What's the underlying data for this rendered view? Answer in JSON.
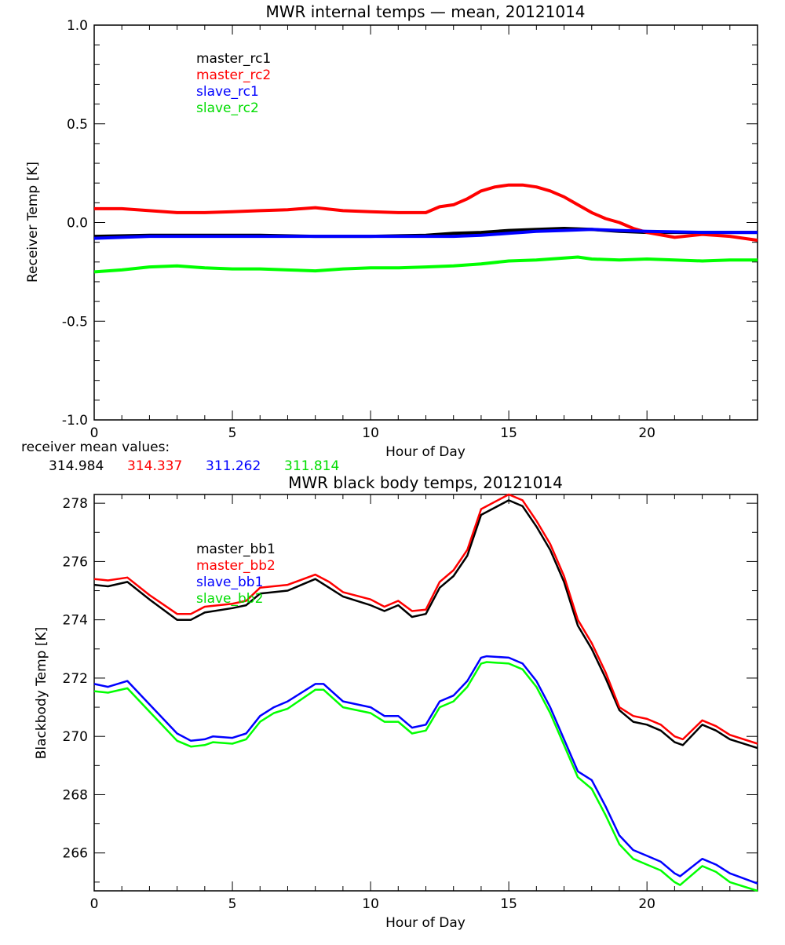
{
  "chart_data": [
    {
      "type": "line",
      "title": "MWR internal temps — mean, 20121014",
      "xlabel": "Hour of Day",
      "ylabel": "Receiver Temp [K]",
      "xlim": [
        0,
        24
      ],
      "ylim": [
        -1.0,
        1.0
      ],
      "xticks": [
        "0",
        "5",
        "10",
        "15",
        "20"
      ],
      "xtick_values": [
        0,
        5,
        10,
        15,
        20
      ],
      "yticks": [
        "-1.0",
        "-0.5",
        "0.0",
        "0.5",
        "1.0"
      ],
      "ytick_values": [
        -1.0,
        -0.5,
        0,
        0.5,
        1.0
      ],
      "legend_placement": "top-left",
      "series": [
        {
          "name": "master_rc1",
          "color": "#000000",
          "x": [
            0,
            2,
            4,
            6,
            8,
            10,
            12,
            13,
            14,
            15,
            16,
            17,
            18,
            19,
            20,
            22,
            24
          ],
          "y": [
            -0.07,
            -0.065,
            -0.065,
            -0.065,
            -0.07,
            -0.07,
            -0.065,
            -0.055,
            -0.05,
            -0.04,
            -0.035,
            -0.03,
            -0.035,
            -0.045,
            -0.05,
            -0.05,
            -0.05
          ]
        },
        {
          "name": "master_rc2",
          "color": "#ff0000",
          "x": [
            0,
            1,
            2,
            3,
            4,
            5,
            6,
            7,
            8,
            9,
            10,
            11,
            12,
            12.5,
            13,
            13.5,
            14,
            14.5,
            15,
            15.5,
            16,
            16.5,
            17,
            17.5,
            18,
            18.5,
            19,
            19.5,
            20,
            21,
            22,
            23,
            24
          ],
          "y": [
            0.07,
            0.07,
            0.06,
            0.05,
            0.05,
            0.055,
            0.06,
            0.065,
            0.075,
            0.06,
            0.055,
            0.05,
            0.05,
            0.08,
            0.09,
            0.12,
            0.16,
            0.18,
            0.19,
            0.19,
            0.18,
            0.16,
            0.13,
            0.09,
            0.05,
            0.02,
            0.0,
            -0.03,
            -0.05,
            -0.075,
            -0.06,
            -0.07,
            -0.09
          ]
        },
        {
          "name": "slave_rc1",
          "color": "#0000ff",
          "x": [
            0,
            2,
            4,
            6,
            8,
            10,
            12,
            13,
            14,
            15,
            16,
            17,
            18,
            19,
            20,
            22,
            24
          ],
          "y": [
            -0.08,
            -0.07,
            -0.07,
            -0.07,
            -0.07,
            -0.07,
            -0.07,
            -0.07,
            -0.065,
            -0.055,
            -0.045,
            -0.04,
            -0.035,
            -0.04,
            -0.045,
            -0.05,
            -0.05
          ]
        },
        {
          "name": "slave_rc2",
          "color": "#00ff00",
          "x": [
            0,
            1,
            2,
            3,
            4,
            5,
            6,
            7,
            8,
            9,
            10,
            11,
            12,
            13,
            14,
            15,
            16,
            17,
            17.5,
            18,
            19,
            20,
            21,
            22,
            23,
            24
          ],
          "y": [
            -0.25,
            -0.24,
            -0.225,
            -0.22,
            -0.23,
            -0.235,
            -0.235,
            -0.24,
            -0.245,
            -0.235,
            -0.23,
            -0.23,
            -0.225,
            -0.22,
            -0.21,
            -0.195,
            -0.19,
            -0.18,
            -0.175,
            -0.185,
            -0.19,
            -0.185,
            -0.19,
            -0.195,
            -0.19,
            -0.19
          ]
        }
      ],
      "annotation": {
        "label": "receiver mean values:",
        "values": [
          "314.984",
          "314.337",
          "311.262",
          "311.814"
        ]
      }
    },
    {
      "type": "line",
      "title": "MWR black body temps, 20121014",
      "xlabel": "Hour of Day",
      "ylabel": "Blackbody Temp [K]",
      "xlim": [
        0,
        24
      ],
      "ylim": [
        264.7,
        278.3
      ],
      "xticks": [
        "0",
        "5",
        "10",
        "15",
        "20"
      ],
      "xtick_values": [
        0,
        5,
        10,
        15,
        20
      ],
      "yticks": [
        "266",
        "268",
        "270",
        "272",
        "274",
        "276",
        "278"
      ],
      "ytick_values": [
        266,
        268,
        270,
        272,
        274,
        276,
        278
      ],
      "legend_placement": "top-left",
      "series": [
        {
          "name": "master_bb1",
          "color": "#000000",
          "x": [
            0,
            0.5,
            1.2,
            2,
            3,
            3.5,
            4,
            5,
            5.5,
            6,
            7,
            8,
            8.5,
            9,
            10,
            10.5,
            11,
            11.5,
            12,
            12.5,
            13,
            13.5,
            14,
            15,
            15.5,
            16,
            16.5,
            17,
            17.5,
            18,
            18.5,
            19,
            19.5,
            20,
            20.5,
            21,
            21.3,
            22,
            22.5,
            23,
            24
          ],
          "y": [
            275.2,
            275.15,
            275.3,
            274.7,
            274.0,
            274.0,
            274.25,
            274.4,
            274.5,
            274.9,
            275.0,
            275.4,
            275.1,
            274.8,
            274.5,
            274.3,
            274.5,
            274.1,
            274.2,
            275.1,
            275.5,
            276.2,
            277.6,
            278.1,
            277.9,
            277.2,
            276.4,
            275.3,
            273.8,
            273.0,
            272.0,
            270.9,
            270.5,
            270.4,
            270.2,
            269.8,
            269.7,
            270.4,
            270.2,
            269.9,
            269.6
          ]
        },
        {
          "name": "master_bb2",
          "color": "#ff0000",
          "x": [
            0,
            0.5,
            1.2,
            2,
            3,
            3.5,
            4,
            5,
            5.5,
            6,
            7,
            8,
            8.5,
            9,
            10,
            10.5,
            11,
            11.5,
            12,
            12.5,
            13,
            13.5,
            14,
            15,
            15.5,
            16,
            16.5,
            17,
            17.5,
            18,
            18.5,
            19,
            19.5,
            20,
            20.5,
            21,
            21.3,
            22,
            22.5,
            23,
            24
          ],
          "y": [
            275.4,
            275.35,
            275.45,
            274.85,
            274.2,
            274.2,
            274.45,
            274.55,
            274.65,
            275.1,
            275.2,
            275.55,
            275.3,
            274.95,
            274.7,
            274.45,
            274.65,
            274.3,
            274.35,
            275.3,
            275.7,
            276.4,
            277.8,
            278.3,
            278.1,
            277.4,
            276.6,
            275.5,
            274.0,
            273.2,
            272.2,
            271.0,
            270.7,
            270.6,
            270.4,
            270.0,
            269.9,
            270.55,
            270.35,
            270.05,
            269.75
          ]
        },
        {
          "name": "slave_bb1",
          "color": "#0000ff",
          "x": [
            0,
            0.5,
            1.2,
            2,
            3,
            3.5,
            4,
            4.3,
            5,
            5.5,
            6,
            6.5,
            7,
            8,
            8.3,
            9,
            10,
            10.5,
            11,
            11.5,
            12,
            12.5,
            13,
            13.5,
            14,
            14.2,
            15,
            15.5,
            16,
            16.5,
            17,
            17.5,
            18,
            18.5,
            19,
            19.5,
            20,
            20.5,
            21,
            21.2,
            22,
            22.5,
            23,
            24
          ],
          "y": [
            271.8,
            271.7,
            271.9,
            271.1,
            270.1,
            269.85,
            269.9,
            270.0,
            269.95,
            270.1,
            270.7,
            271.0,
            271.2,
            271.8,
            271.8,
            271.2,
            271.0,
            270.7,
            270.7,
            270.3,
            270.4,
            271.2,
            271.4,
            271.9,
            272.7,
            272.75,
            272.7,
            272.5,
            271.9,
            271.0,
            269.9,
            268.8,
            268.5,
            267.6,
            266.6,
            266.1,
            265.9,
            265.7,
            265.3,
            265.2,
            265.8,
            265.6,
            265.3,
            264.95
          ]
        },
        {
          "name": "slave_bb2",
          "color": "#00ff00",
          "x": [
            0,
            0.5,
            1.2,
            2,
            3,
            3.5,
            4,
            4.3,
            5,
            5.5,
            6,
            6.5,
            7,
            8,
            8.3,
            9,
            10,
            10.5,
            11,
            11.5,
            12,
            12.5,
            13,
            13.5,
            14,
            14.2,
            15,
            15.5,
            16,
            16.5,
            17,
            17.5,
            18,
            18.5,
            19,
            19.5,
            20,
            20.5,
            21,
            21.2,
            22,
            22.5,
            23,
            24
          ],
          "y": [
            271.55,
            271.5,
            271.65,
            270.85,
            269.85,
            269.65,
            269.7,
            269.8,
            269.75,
            269.9,
            270.5,
            270.8,
            270.95,
            271.6,
            271.6,
            271.0,
            270.8,
            270.5,
            270.5,
            270.1,
            270.2,
            271.0,
            271.2,
            271.7,
            272.5,
            272.55,
            272.5,
            272.3,
            271.7,
            270.8,
            269.7,
            268.6,
            268.2,
            267.3,
            266.3,
            265.8,
            265.6,
            265.4,
            265.0,
            264.9,
            265.55,
            265.35,
            265.0,
            264.7
          ]
        }
      ]
    }
  ]
}
